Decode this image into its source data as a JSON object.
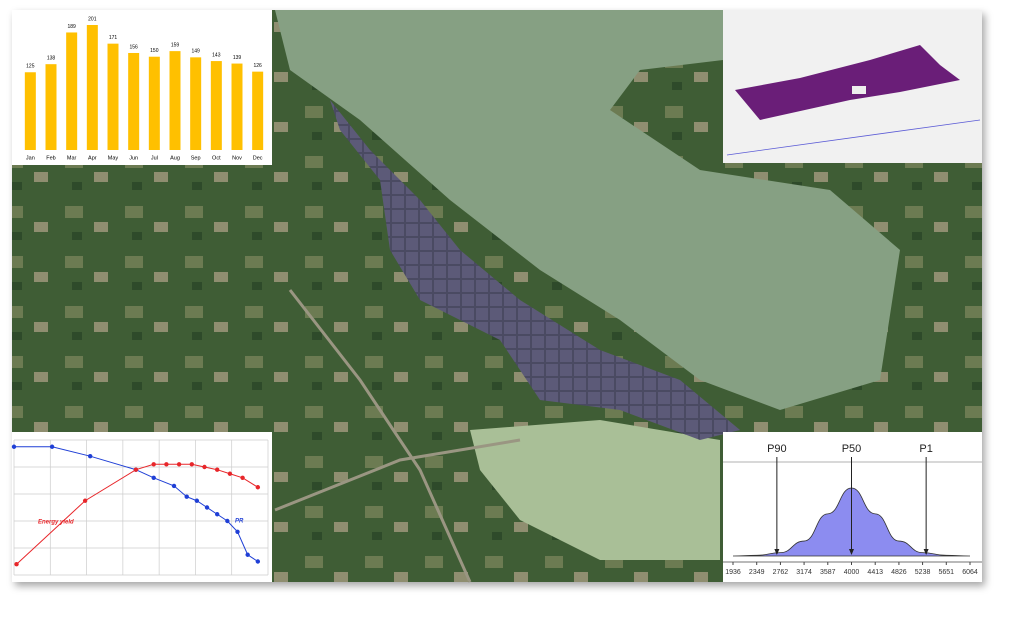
{
  "chart_data": [
    {
      "type": "bar",
      "categories": [
        "Jan",
        "Feb",
        "Mar",
        "Apr",
        "May",
        "Jun",
        "Jul",
        "Aug",
        "Sep",
        "Oct",
        "Nov",
        "Dec"
      ],
      "values": [
        125,
        138,
        189,
        201,
        171,
        156,
        150,
        159,
        149,
        143,
        139,
        126
      ],
      "color": "#ffc000"
    },
    {
      "type": "line",
      "grid": true,
      "series": [
        {
          "name": "PR",
          "color": "#1f3fd6",
          "x": [
            0,
            15,
            30,
            48,
            55,
            63,
            68,
            72,
            76,
            80,
            84,
            88,
            92,
            96
          ],
          "values": [
            95,
            95,
            88,
            78,
            72,
            66,
            58,
            55,
            50,
            45,
            40,
            32,
            15,
            10
          ]
        },
        {
          "name": "Energy yield",
          "color": "#e8262a",
          "x": [
            1,
            28,
            48,
            55,
            60,
            65,
            70,
            75,
            80,
            85,
            90,
            96
          ],
          "values": [
            8,
            55,
            78,
            82,
            82,
            82,
            82,
            80,
            78,
            75,
            72,
            65
          ]
        }
      ]
    },
    {
      "type": "area",
      "color": "#8c8cf0",
      "x": [
        1936,
        2349,
        2762,
        3174,
        3587,
        4000,
        4413,
        4826,
        5238,
        5651,
        6064
      ],
      "values": [
        0,
        1,
        5,
        22,
        62,
        100,
        62,
        22,
        5,
        1,
        0
      ],
      "xlim": [
        1936,
        6064
      ],
      "xticks": [
        1936,
        2349,
        2762,
        3174,
        3587,
        4000,
        4413,
        4826,
        5238,
        5651,
        6064
      ],
      "annotations": [
        {
          "label": "P90",
          "x": 2700
        },
        {
          "label": "P50",
          "x": 4000
        },
        {
          "label": "P1",
          "x": 5300
        }
      ]
    }
  ]
}
